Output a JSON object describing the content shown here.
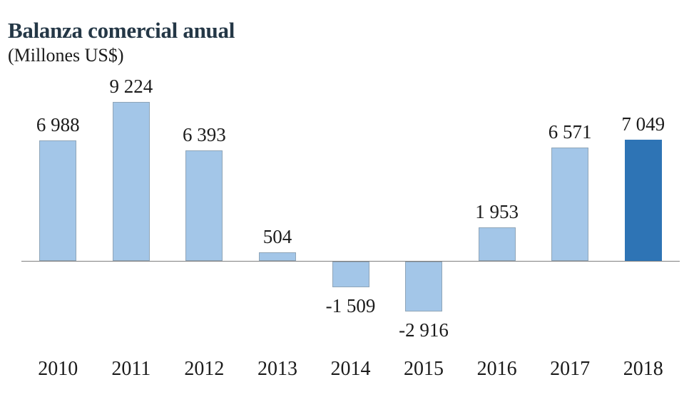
{
  "chart_data": {
    "type": "bar",
    "title": "Balanza comercial anual",
    "subtitle": "(Millones US$)",
    "categories": [
      "2010",
      "2011",
      "2012",
      "2013",
      "2014",
      "2015",
      "2016",
      "2017",
      "2018"
    ],
    "values": [
      6988,
      9224,
      6393,
      504,
      -1509,
      -2916,
      1953,
      6571,
      7049
    ],
    "value_labels": [
      "6 988",
      "9 224",
      "6 393",
      "504",
      "-1 509",
      "-2 916",
      "1 953",
      "6 571",
      "7 049"
    ],
    "highlight_index": 8,
    "ylim": [
      -3500,
      9500
    ],
    "grid": false,
    "legend": false,
    "xlabel": "",
    "ylabel": "",
    "colors": {
      "background": "#FFFFFF",
      "bar_fill": "#A3C6E8",
      "bar_border": "#8FA5B8",
      "highlight_fill": "#2E74B5",
      "highlight_border": "#2E74B5",
      "axis_line": "#7F7F7F",
      "title_text": "#243746",
      "label_text": "#1B1B1B"
    }
  }
}
